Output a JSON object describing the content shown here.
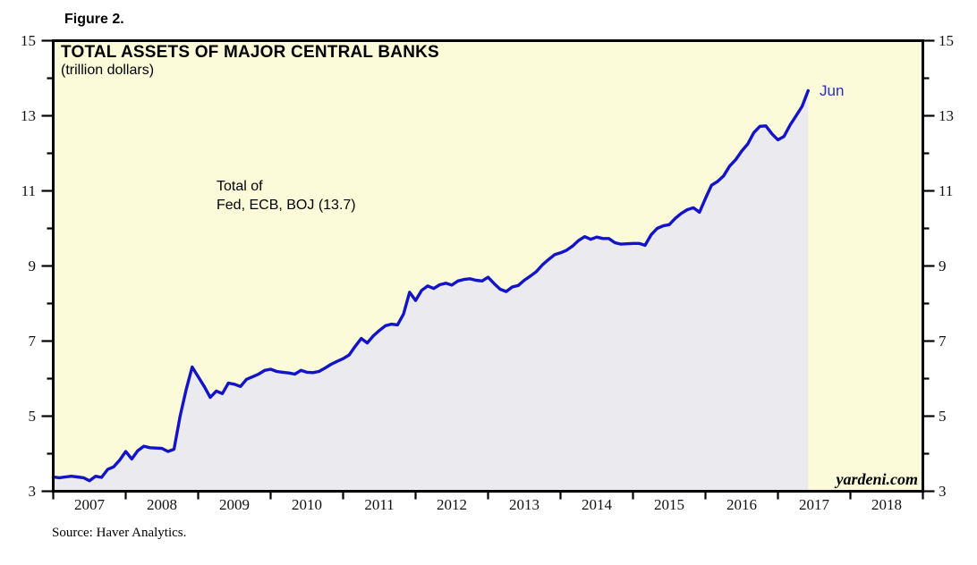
{
  "figure_label": "Figure 2.",
  "source_note": "Source: Haver Analytics.",
  "watermark": "yardeni.com",
  "chart_data": {
    "type": "area",
    "title": "TOTAL ASSETS OF MAJOR CENTRAL BANKS",
    "subtitle": "(trillion dollars)",
    "annotation": {
      "line1": "Total of",
      "line2": "Fed, ECB, BOJ (13.7)"
    },
    "end_label": "Jun",
    "latest_value": 13.7,
    "ylim": [
      3,
      15
    ],
    "y_major_ticks": [
      3,
      5,
      7,
      9,
      11,
      13,
      15
    ],
    "y_minor_ticks": [
      4,
      6,
      8,
      10,
      12,
      14
    ],
    "x_tick_years": [
      "2007",
      "2008",
      "2009",
      "2010",
      "2011",
      "2012",
      "2013",
      "2014",
      "2015",
      "2016",
      "2017",
      "2018"
    ],
    "x_axis_years_span": 12,
    "grid": "off",
    "legend": "none",
    "series": [
      {
        "name": "Total assets of Fed, ECB, BOJ",
        "start": "2007-01",
        "end": "2017-06",
        "frequency": "monthly",
        "values": [
          3.38,
          3.36,
          3.38,
          3.4,
          3.38,
          3.36,
          3.28,
          3.4,
          3.37,
          3.58,
          3.65,
          3.83,
          4.06,
          3.86,
          4.08,
          4.2,
          4.16,
          4.15,
          4.14,
          4.06,
          4.12,
          5.0,
          5.7,
          6.31,
          6.05,
          5.79,
          5.5,
          5.67,
          5.6,
          5.88,
          5.85,
          5.79,
          5.98,
          6.05,
          6.12,
          6.22,
          6.25,
          6.19,
          6.17,
          6.15,
          6.12,
          6.22,
          6.17,
          6.16,
          6.19,
          6.28,
          6.38,
          6.46,
          6.53,
          6.63,
          6.86,
          7.07,
          6.95,
          7.14,
          7.28,
          7.41,
          7.45,
          7.43,
          7.72,
          8.3,
          8.08,
          8.35,
          8.47,
          8.4,
          8.5,
          8.54,
          8.49,
          8.6,
          8.64,
          8.66,
          8.62,
          8.6,
          8.7,
          8.53,
          8.38,
          8.32,
          8.44,
          8.48,
          8.62,
          8.73,
          8.85,
          9.03,
          9.17,
          9.3,
          9.35,
          9.42,
          9.53,
          9.68,
          9.78,
          9.71,
          9.77,
          9.73,
          9.73,
          9.62,
          9.58,
          9.59,
          9.6,
          9.6,
          9.55,
          9.83,
          10.0,
          10.07,
          10.1,
          10.27,
          10.4,
          10.5,
          10.55,
          10.43,
          10.8,
          11.15,
          11.25,
          11.4,
          11.66,
          11.83,
          12.06,
          12.25,
          12.55,
          12.72,
          12.73,
          12.52,
          12.36,
          12.45,
          12.75,
          13.0,
          13.25,
          13.67
        ]
      }
    ],
    "colors": {
      "plot_background": "#fbfbda",
      "area_fill": "#eaeaef",
      "line": "#1313c8",
      "end_label": "#2a2acd",
      "axis": "#000000"
    }
  }
}
